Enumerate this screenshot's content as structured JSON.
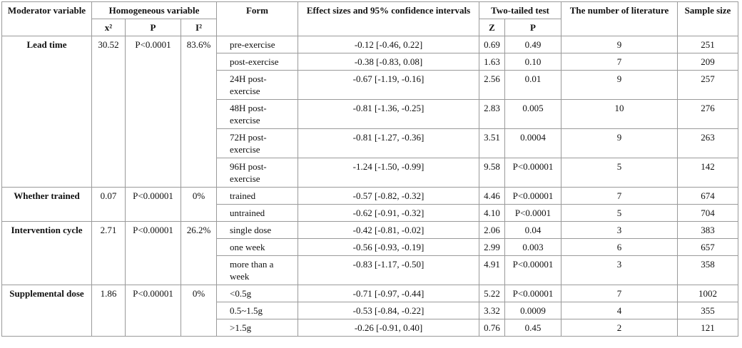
{
  "table": {
    "header": {
      "moderator_variable": "Moderator variable",
      "homogeneous_variable": "Homogeneous variable",
      "chi2": "x²",
      "p": "P",
      "i2": "I²",
      "form": "Form",
      "effect": "Effect sizes and 95% confidence intervals",
      "two_tailed": "Two-tailed test",
      "z": "Z",
      "p_test": "P",
      "literature": "The number of literature",
      "sample": "Sample size"
    },
    "groups": [
      {
        "moderator": "Lead time",
        "chi2": "30.52",
        "p": "P<0.0001",
        "i2": "83.6%",
        "rows": [
          [
            "pre-exercise",
            "-0.12 [-0.46, 0.22]",
            "0.69",
            "0.49",
            "9",
            "251"
          ],
          [
            "post-exercise",
            "-0.38 [-0.83, 0.08]",
            "1.63",
            "0.10",
            "7",
            "209"
          ],
          [
            "24H post-exercise",
            "-0.67 [-1.19, -0.16]",
            "2.56",
            "0.01",
            "9",
            "257"
          ],
          [
            "48H post-exercise",
            "-0.81 [-1.36, -0.25]",
            "2.83",
            "0.005",
            "10",
            "276"
          ],
          [
            "72H post-exercise",
            "-0.81 [-1.27, -0.36]",
            "3.51",
            "0.0004",
            "9",
            "263"
          ],
          [
            "96H post-exercise",
            "-1.24 [-1.50, -0.99]",
            "9.58",
            "P<0.00001",
            "5",
            "142"
          ]
        ]
      },
      {
        "moderator": "Whether trained",
        "chi2": "0.07",
        "p": "P<0.00001",
        "i2": "0%",
        "rows": [
          [
            "trained",
            "-0.57 [-0.82, -0.32]",
            "4.46",
            "P<0.00001",
            "7",
            "674"
          ],
          [
            "untrained",
            "-0.62 [-0.91, -0.32]",
            "4.10",
            "P<0.0001",
            "5",
            "704"
          ]
        ]
      },
      {
        "moderator": "Intervention cycle",
        "chi2": "2.71",
        "p": "P<0.00001",
        "i2": "26.2%",
        "rows": [
          [
            "single dose",
            "-0.42 [-0.81, -0.02]",
            "2.06",
            "0.04",
            "3",
            "383"
          ],
          [
            "one week",
            "-0.56 [-0.93, -0.19]",
            "2.99",
            "0.003",
            "6",
            "657"
          ],
          [
            "more than a week",
            "-0.83 [-1.17, -0.50]",
            "4.91",
            "P<0.00001",
            "3",
            "358"
          ]
        ]
      },
      {
        "moderator": "Supplemental dose",
        "chi2": "1.86",
        "p": "P<0.00001",
        "i2": "0%",
        "rows": [
          [
            "<0.5g",
            "-0.71 [-0.97, -0.44]",
            "5.22",
            "P<0.00001",
            "7",
            "1002"
          ],
          [
            "0.5~1.5g",
            "-0.53 [-0.84, -0.22]",
            "3.32",
            "0.0009",
            "4",
            "355"
          ],
          [
            ">1.5g",
            "-0.26 [-0.91, 0.40]",
            "0.76",
            "0.45",
            "2",
            "121"
          ]
        ]
      }
    ]
  }
}
